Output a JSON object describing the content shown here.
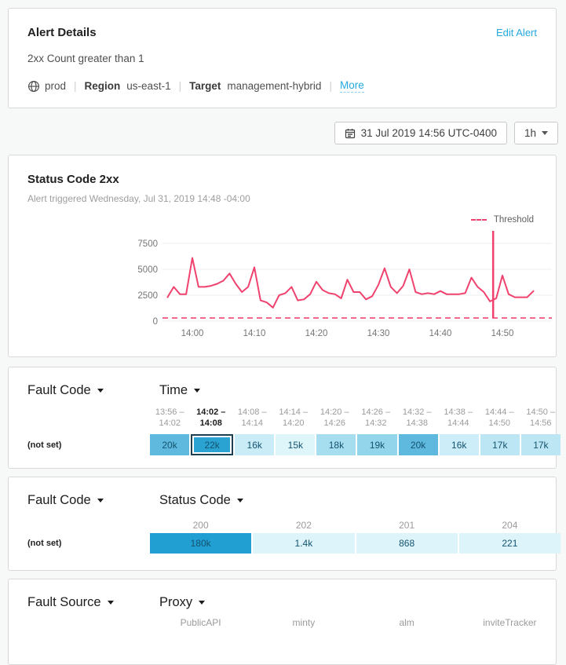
{
  "alert_details": {
    "title": "Alert Details",
    "edit_link": "Edit Alert",
    "condition": "2xx Count greater than 1",
    "environment": "prod",
    "region_label": "Region",
    "region_value": "us-east-1",
    "target_label": "Target",
    "target_value": "management-hybrid",
    "more_link": "More",
    "divider": "|"
  },
  "controls": {
    "datetime_label": "31 Jul 2019 14:56 UTC-0400",
    "duration_label": "1h"
  },
  "chart_card": {
    "title": "Status Code 2xx",
    "subtitle": "Alert triggered Wednesday, Jul 31, 2019 14:48 -04:00",
    "legend_label": "Threshold"
  },
  "chart_data": {
    "type": "line",
    "title": "Status Code 2xx",
    "xlabel": "",
    "ylabel": "",
    "ylim": [
      0,
      7500
    ],
    "y_ticks": [
      "7500",
      "5000",
      "2500",
      "0"
    ],
    "x_ticks": [
      "14:00",
      "14:10",
      "14:20",
      "14:30",
      "14:40",
      "14:50"
    ],
    "grid": true,
    "legend_position": "top-right",
    "legend_entries": [
      "Threshold"
    ],
    "threshold_value": 1,
    "alert_marker_x": "14:48",
    "line_color": "#f0426e",
    "series": [
      {
        "name": "2xx Count",
        "x": [
          "13:56",
          "13:57",
          "13:58",
          "13:59",
          "14:00",
          "14:01",
          "14:02",
          "14:03",
          "14:04",
          "14:05",
          "14:06",
          "14:07",
          "14:08",
          "14:09",
          "14:10",
          "14:11",
          "14:12",
          "14:13",
          "14:14",
          "14:15",
          "14:16",
          "14:17",
          "14:18",
          "14:19",
          "14:20",
          "14:21",
          "14:22",
          "14:23",
          "14:24",
          "14:25",
          "14:26",
          "14:27",
          "14:28",
          "14:29",
          "14:30",
          "14:31",
          "14:32",
          "14:33",
          "14:34",
          "14:35",
          "14:36",
          "14:37",
          "14:38",
          "14:39",
          "14:40",
          "14:41",
          "14:42",
          "14:43",
          "14:44",
          "14:45",
          "14:46",
          "14:47",
          "14:48",
          "14:49",
          "14:50",
          "14:51",
          "14:52",
          "14:53",
          "14:54",
          "14:55"
        ],
        "values": [
          2300,
          3300,
          2600,
          2600,
          6100,
          3300,
          3300,
          3400,
          3600,
          3900,
          4600,
          3600,
          2800,
          3300,
          5200,
          2000,
          1800,
          1300,
          2500,
          2700,
          3300,
          2000,
          2100,
          2600,
          3800,
          3000,
          2700,
          2600,
          2200,
          4000,
          2800,
          2800,
          2100,
          2400,
          3500,
          5100,
          3300,
          2700,
          3400,
          5000,
          2800,
          2600,
          2700,
          2600,
          2900,
          2600,
          2600,
          2600,
          2700,
          4200,
          3300,
          2800,
          1900,
          2200,
          4400,
          2600,
          2300,
          2300,
          2300,
          2900
        ]
      }
    ]
  },
  "fault_time_table": {
    "row_dimension_label": "Fault Code",
    "col_dimension_label": "Time",
    "row_label": "(not set)",
    "columns": [
      {
        "range_start": "13:56 –",
        "range_end": "14:02",
        "value": "20k",
        "bg": "#5fb9de",
        "selected": false
      },
      {
        "range_start": "14:02 –",
        "range_end": "14:08",
        "value": "22k",
        "bg": "#2ba3d2",
        "selected": true
      },
      {
        "range_start": "14:08 –",
        "range_end": "14:14",
        "value": "16k",
        "bg": "#c9ecf7",
        "selected": false
      },
      {
        "range_start": "14:14 –",
        "range_end": "14:20",
        "value": "15k",
        "bg": "#def5fa",
        "selected": false
      },
      {
        "range_start": "14:20 –",
        "range_end": "14:26",
        "value": "18k",
        "bg": "#a6def0",
        "selected": false
      },
      {
        "range_start": "14:26 –",
        "range_end": "14:32",
        "value": "19k",
        "bg": "#93d6ec",
        "selected": false
      },
      {
        "range_start": "14:32 –",
        "range_end": "14:38",
        "value": "20k",
        "bg": "#5fb9de",
        "selected": false
      },
      {
        "range_start": "14:38 –",
        "range_end": "14:44",
        "value": "16k",
        "bg": "#cdeef8",
        "selected": false
      },
      {
        "range_start": "14:44 –",
        "range_end": "14:50",
        "value": "17k",
        "bg": "#bce6f4",
        "selected": false
      },
      {
        "range_start": "14:50 –",
        "range_end": "14:56",
        "value": "17k",
        "bg": "#bce6f4",
        "selected": false
      }
    ]
  },
  "fault_status_table": {
    "row_dimension_label": "Fault Code",
    "col_dimension_label": "Status Code",
    "row_label": "(not set)",
    "columns": [
      {
        "header": "200",
        "value": "180k",
        "bg": "#219fd3"
      },
      {
        "header": "202",
        "value": "1.4k",
        "bg": "#def4fb"
      },
      {
        "header": "201",
        "value": "868",
        "bg": "#def4fb"
      },
      {
        "header": "204",
        "value": "221",
        "bg": "#def4fb"
      }
    ]
  },
  "fault_proxy_table": {
    "row_dimension_label": "Fault Source",
    "col_dimension_label": "Proxy",
    "columns": [
      {
        "header": "PublicAPI"
      },
      {
        "header": "minty"
      },
      {
        "header": "alm"
      },
      {
        "header": "inviteTracker"
      }
    ]
  },
  "colors": {
    "accent_blue": "#25a8e0",
    "line_pink": "#f0426e",
    "cell_text": "#14536e",
    "selected_border": "#1e3e51"
  }
}
